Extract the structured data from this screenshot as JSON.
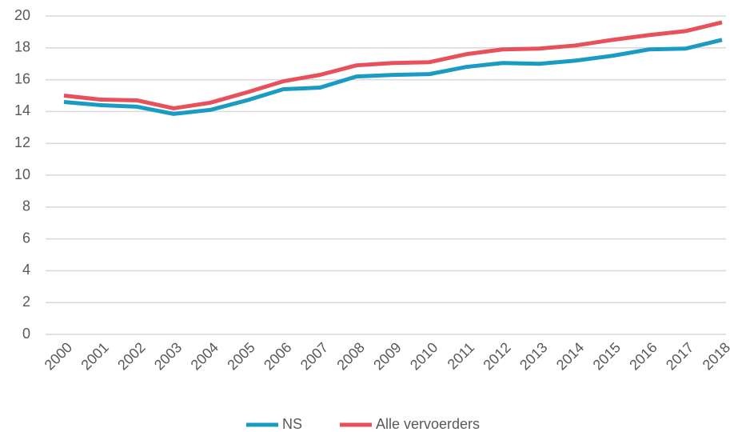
{
  "chart_data": {
    "type": "line",
    "categories": [
      "2000",
      "2001",
      "2002",
      "2003",
      "2004",
      "2005",
      "2006",
      "2007",
      "2008",
      "2009",
      "2010",
      "2011",
      "2012",
      "2013",
      "2014",
      "2015",
      "2016",
      "2017",
      "2018"
    ],
    "series": [
      {
        "name": "NS",
        "color": "#1a9bc4",
        "values": [
          14.6,
          14.4,
          14.3,
          13.85,
          14.1,
          14.7,
          15.4,
          15.5,
          16.2,
          16.3,
          16.35,
          16.8,
          17.05,
          17.0,
          17.2,
          17.5,
          17.9,
          17.95,
          18.5
        ]
      },
      {
        "name": "Alle vervoerders",
        "color": "#e8505b",
        "values": [
          15.0,
          14.75,
          14.7,
          14.2,
          14.55,
          15.2,
          15.9,
          16.3,
          16.9,
          17.05,
          17.1,
          17.6,
          17.9,
          17.95,
          18.15,
          18.5,
          18.8,
          19.05,
          19.6
        ]
      }
    ],
    "ylim": [
      0,
      20
    ],
    "yticks": [
      0,
      2,
      4,
      6,
      8,
      10,
      12,
      14,
      16,
      18,
      20
    ],
    "grid": true,
    "legend": "bottom"
  }
}
